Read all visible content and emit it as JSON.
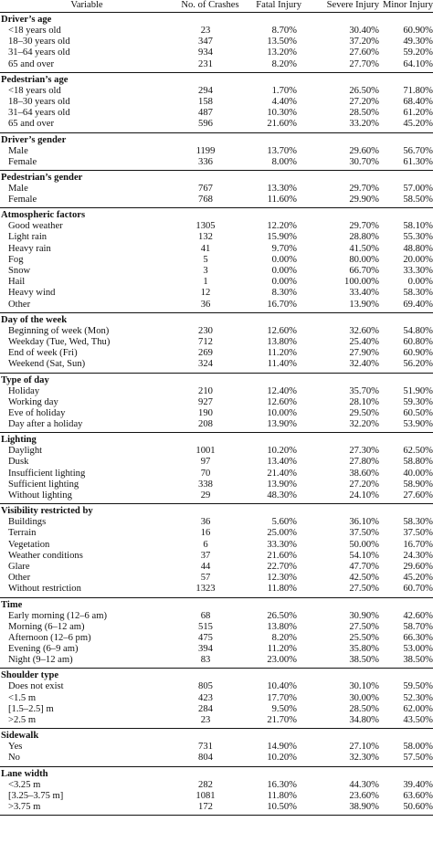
{
  "headers": [
    "Variable",
    "No. of Crashes",
    "Fatal Injury",
    "Severe Injury",
    "Minor Injury"
  ],
  "sections": [
    {
      "title": "Driver’s age",
      "rows": [
        [
          "<18 years old",
          "23",
          "8.70%",
          "30.40%",
          "60.90%"
        ],
        [
          "18–30 years old",
          "347",
          "13.50%",
          "37.20%",
          "49.30%"
        ],
        [
          "31–64 years old",
          "934",
          "13.20%",
          "27.60%",
          "59.20%"
        ],
        [
          "65 and over",
          "231",
          "8.20%",
          "27.70%",
          "64.10%"
        ]
      ]
    },
    {
      "title": "Pedestrian’s age",
      "rows": [
        [
          "<18 years old",
          "294",
          "1.70%",
          "26.50%",
          "71.80%"
        ],
        [
          "18–30 years old",
          "158",
          "4.40%",
          "27.20%",
          "68.40%"
        ],
        [
          "31–64 years old",
          "487",
          "10.30%",
          "28.50%",
          "61.20%"
        ],
        [
          "65 and over",
          "596",
          "21.60%",
          "33.20%",
          "45.20%"
        ]
      ]
    },
    {
      "title": "Driver’s gender",
      "rows": [
        [
          "Male",
          "1199",
          "13.70%",
          "29.60%",
          "56.70%"
        ],
        [
          "Female",
          "336",
          "8.00%",
          "30.70%",
          "61.30%"
        ]
      ]
    },
    {
      "title": "Pedestrian’s gender",
      "rows": [
        [
          "Male",
          "767",
          "13.30%",
          "29.70%",
          "57.00%"
        ],
        [
          "Female",
          "768",
          "11.60%",
          "29.90%",
          "58.50%"
        ]
      ]
    },
    {
      "title": "Atmospheric factors",
      "rows": [
        [
          "Good weather",
          "1305",
          "12.20%",
          "29.70%",
          "58.10%"
        ],
        [
          "Light rain",
          "132",
          "15.90%",
          "28.80%",
          "55.30%"
        ],
        [
          "Heavy rain",
          "41",
          "9.70%",
          "41.50%",
          "48.80%"
        ],
        [
          "Fog",
          "5",
          "0.00%",
          "80.00%",
          "20.00%"
        ],
        [
          "Snow",
          "3",
          "0.00%",
          "66.70%",
          "33.30%"
        ],
        [
          "Hail",
          "1",
          "0.00%",
          "100.00%",
          "0.00%"
        ],
        [
          "Heavy wind",
          "12",
          "8.30%",
          "33.40%",
          "58.30%"
        ],
        [
          "Other",
          "36",
          "16.70%",
          "13.90%",
          "69.40%"
        ]
      ]
    },
    {
      "title": "Day of the week",
      "rows": [
        [
          "Beginning of week (Mon)",
          "230",
          "12.60%",
          "32.60%",
          "54.80%"
        ],
        [
          "Weekday (Tue, Wed, Thu)",
          "712",
          "13.80%",
          "25.40%",
          "60.80%"
        ],
        [
          "End of week (Fri)",
          "269",
          "11.20%",
          "27.90%",
          "60.90%"
        ],
        [
          "Weekend (Sat, Sun)",
          "324",
          "11.40%",
          "32.40%",
          "56.20%"
        ]
      ]
    },
    {
      "title": "Type of day",
      "rows": [
        [
          "Holiday",
          "210",
          "12.40%",
          "35.70%",
          "51.90%"
        ],
        [
          "Working day",
          "927",
          "12.60%",
          "28.10%",
          "59.30%"
        ],
        [
          "Eve of holiday",
          "190",
          "10.00%",
          "29.50%",
          "60.50%"
        ],
        [
          "Day after a holiday",
          "208",
          "13.90%",
          "32.20%",
          "53.90%"
        ]
      ]
    },
    {
      "title": "Lighting",
      "rows": [
        [
          "Daylight",
          "1001",
          "10.20%",
          "27.30%",
          "62.50%"
        ],
        [
          "Dusk",
          "97",
          "13.40%",
          "27.80%",
          "58.80%"
        ],
        [
          "Insufficient lighting",
          "70",
          "21.40%",
          "38.60%",
          "40.00%"
        ],
        [
          "Sufficient lighting",
          "338",
          "13.90%",
          "27.20%",
          "58.90%"
        ],
        [
          "Without lighting",
          "29",
          "48.30%",
          "24.10%",
          "27.60%"
        ]
      ]
    },
    {
      "title": "Visibility restricted by",
      "rows": [
        [
          "Buildings",
          "36",
          "5.60%",
          "36.10%",
          "58.30%"
        ],
        [
          "Terrain",
          "16",
          "25.00%",
          "37.50%",
          "37.50%"
        ],
        [
          "Vegetation",
          "6",
          "33.30%",
          "50.00%",
          "16.70%"
        ],
        [
          "Weather conditions",
          "37",
          "21.60%",
          "54.10%",
          "24.30%"
        ],
        [
          "Glare",
          "44",
          "22.70%",
          "47.70%",
          "29.60%"
        ],
        [
          "Other",
          "57",
          "12.30%",
          "42.50%",
          "45.20%"
        ],
        [
          "Without restriction",
          "1323",
          "11.80%",
          "27.50%",
          "60.70%"
        ]
      ]
    },
    {
      "title": "Time",
      "rows": [
        [
          "Early morning (12–6 am)",
          "68",
          "26.50%",
          "30.90%",
          "42.60%"
        ],
        [
          "Morning (6–12 am)",
          "515",
          "13.80%",
          "27.50%",
          "58.70%"
        ],
        [
          "Afternoon (12–6 pm)",
          "475",
          "8.20%",
          "25.50%",
          "66.30%"
        ],
        [
          "Evening (6–9 am)",
          "394",
          "11.20%",
          "35.80%",
          "53.00%"
        ],
        [
          "Night (9–12 am)",
          "83",
          "23.00%",
          "38.50%",
          "38.50%"
        ]
      ]
    },
    {
      "title": "Shoulder type",
      "rows": [
        [
          "Does not exist",
          "805",
          "10.40%",
          "30.10%",
          "59.50%"
        ],
        [
          "<1.5 m",
          "423",
          "17.70%",
          "30.00%",
          "52.30%"
        ],
        [
          "[1.5–2.5] m",
          "284",
          "9.50%",
          "28.50%",
          "62.00%"
        ],
        [
          ">2.5 m",
          "23",
          "21.70%",
          "34.80%",
          "43.50%"
        ]
      ]
    },
    {
      "title": "Sidewalk",
      "rows": [
        [
          "Yes",
          "731",
          "14.90%",
          "27.10%",
          "58.00%"
        ],
        [
          "No",
          "804",
          "10.20%",
          "32.30%",
          "57.50%"
        ]
      ]
    },
    {
      "title": "Lane width",
      "rows": [
        [
          "<3.25 m",
          "282",
          "16.30%",
          "44.30%",
          "39.40%"
        ],
        [
          "[3.25–3.75 m]",
          "1081",
          "11.80%",
          "23.60%",
          "63.60%"
        ],
        [
          ">3.75 m",
          "172",
          "10.50%",
          "38.90%",
          "50.60%"
        ]
      ]
    }
  ]
}
